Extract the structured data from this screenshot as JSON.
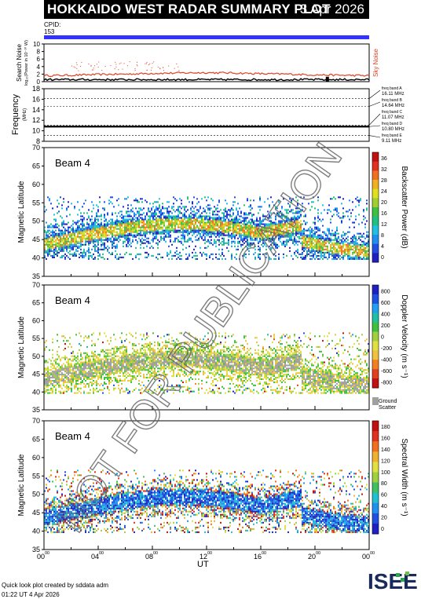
{
  "title": "HOKKAIDO WEST RADAR SUMMARY PLOT",
  "date": "3 Apr 2026",
  "cpid_label": "CPID:",
  "cpid_value": "153",
  "footer_credit": "Quick look plot created by sddata adm",
  "footer_time": "01:22 UT  4 Apr 2026",
  "watermark": "NOT FOR PUBLICATION",
  "logo_text": "ISEE",
  "colors": {
    "cpid_bar": "#3333ff",
    "sky_noise": "#e04020",
    "freq_line": "#000000"
  },
  "time_axis": {
    "label": "UT",
    "ticks": [
      {
        "h": "00",
        "m": "00"
      },
      {
        "h": "04",
        "m": "00"
      },
      {
        "h": "08",
        "m": "00"
      },
      {
        "h": "12",
        "m": "00"
      },
      {
        "h": "16",
        "m": "00"
      },
      {
        "h": "20",
        "m": "00"
      },
      {
        "h": "00",
        "m": "00"
      }
    ]
  },
  "chart_data": [
    {
      "type": "scatter",
      "name": "noise",
      "ylabel_top": "Search Noise",
      "ylabel_bottom": "log₁₀(Power in 10⁻¹⁰ W)",
      "legend": "Sky Noise",
      "ylim": [
        0,
        10
      ],
      "yticks": [
        "0",
        "2",
        "4",
        "6",
        "8",
        "10"
      ],
      "x_hours": [
        0,
        2,
        4,
        6,
        8,
        10,
        12,
        14,
        16,
        18,
        20,
        22,
        24
      ],
      "sky_noise": [
        1.6,
        1.7,
        1.9,
        2.0,
        2.2,
        2.3,
        2.4,
        2.3,
        2.1,
        2.0,
        1.8,
        1.7,
        1.6
      ],
      "search_noise": [
        0.3,
        0.3,
        0.4,
        0.4,
        0.4,
        0.5,
        0.5,
        0.4,
        0.4,
        0.4,
        0.5,
        0.4,
        0.3
      ]
    },
    {
      "type": "line",
      "name": "frequency",
      "ylabel_top": "Frequency",
      "ylabel_bottom": "(MHz)",
      "ylim": [
        8,
        18
      ],
      "yticks": [
        "8",
        "10",
        "12",
        "14",
        "16",
        "18"
      ],
      "bands": [
        {
          "label": "freq band A",
          "mhz": "16.11 MHz",
          "value": 16.11
        },
        {
          "label": "freq band B",
          "mhz": "14.64 MHz",
          "value": 14.64
        },
        {
          "label": "freq band C",
          "mhz": "11.07 MHz",
          "value": 11.07
        },
        {
          "label": "freq band D",
          "mhz": "10.80 MHz",
          "value": 10.8
        },
        {
          "label": "freq band E",
          "mhz": "9.11 MHz",
          "value": 9.11
        }
      ],
      "operating_mhz": 10.8
    },
    {
      "type": "heatmap",
      "name": "power",
      "beam": "Beam  4",
      "ylabel": "Magnetic Latitude",
      "ylim": [
        35,
        70
      ],
      "yticks": [
        "35",
        "40",
        "45",
        "50",
        "55",
        "60",
        "65",
        "70"
      ],
      "colorbar_label": "Backscatter Power (dB)",
      "colorbar_ticks": [
        "0",
        "4",
        "8",
        "12",
        "16",
        "20",
        "24",
        "28",
        "32",
        "36"
      ],
      "colorbar_range": [
        0,
        40
      ]
    },
    {
      "type": "heatmap",
      "name": "velocity",
      "beam": "Beam  4",
      "ylabel": "Magnetic Latitude",
      "ylim": [
        35,
        70
      ],
      "yticks": [
        "35",
        "40",
        "45",
        "50",
        "55",
        "60",
        "65",
        "70"
      ],
      "colorbar_label": "Doppler Velocity (m s⁻¹)",
      "colorbar_ticks": [
        "800",
        "600",
        "400",
        "200",
        "0",
        "-200",
        "-400",
        "-600",
        "-800"
      ],
      "colorbar_range": [
        -900,
        900
      ],
      "ground_label_1": "Ground",
      "ground_label_2": "Scatter"
    },
    {
      "type": "heatmap",
      "name": "width",
      "beam": "Beam  4",
      "ylabel": "Magnetic Latitude",
      "ylim": [
        35,
        70
      ],
      "yticks": [
        "35",
        "40",
        "45",
        "50",
        "55",
        "60",
        "65",
        "70"
      ],
      "colorbar_label": "Spectral Width (m s⁻¹)",
      "colorbar_ticks": [
        "0",
        "20",
        "40",
        "60",
        "80",
        "100",
        "120",
        "140",
        "160",
        "180"
      ],
      "colorbar_range": [
        0,
        200
      ]
    }
  ]
}
